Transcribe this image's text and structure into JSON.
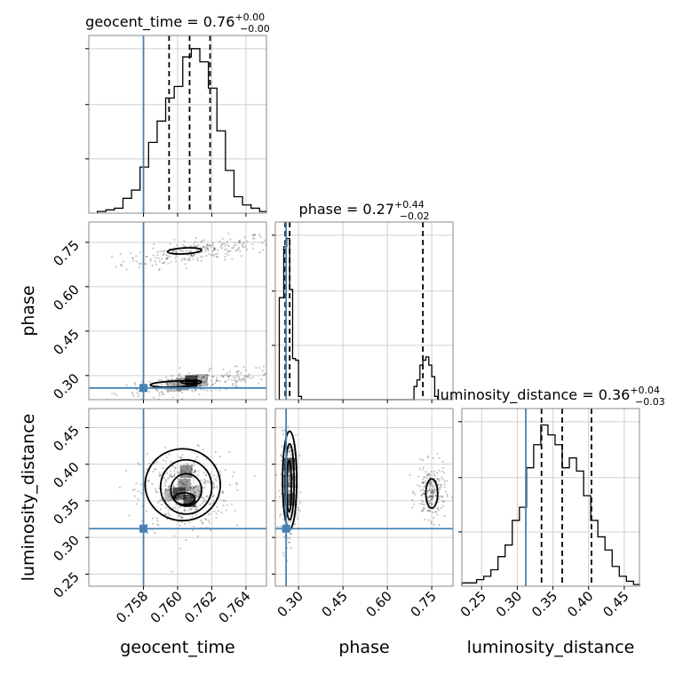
{
  "chart_data": {
    "type": "corner",
    "parameters": [
      "geocent_time",
      "phase",
      "luminosity_distance"
    ],
    "truths": {
      "geocent_time": 0.758,
      "phase": 0.258,
      "luminosity_distance": 0.312
    },
    "truth_color": "#4682b4",
    "titles": [
      {
        "param": "geocent_time",
        "median": "0.76",
        "plus": "+0.00",
        "minus": "−0.00"
      },
      {
        "param": "phase",
        "median": "0.27",
        "plus": "+0.44",
        "minus": "−0.02"
      },
      {
        "param": "luminosity_distance",
        "median": "0.36",
        "plus": "+0.04",
        "minus": "−0.03"
      }
    ],
    "axes": {
      "geocent_time": {
        "range": [
          0.7548,
          0.7652
        ],
        "ticks": [
          "0.758",
          "0.760",
          "0.762",
          "0.764"
        ],
        "tick_values": [
          0.758,
          0.76,
          0.762,
          0.764
        ]
      },
      "phase": {
        "range_x": [
          0.2216,
          0.8216
        ],
        "range_y": [
          0.2185,
          0.8185
        ],
        "ticks": [
          "0.30",
          "0.45",
          "0.60",
          "0.75"
        ],
        "tick_values": [
          0.3,
          0.45,
          0.6,
          0.75
        ]
      },
      "luminosity_distance": {
        "range_x": [
          0.2223,
          0.4713
        ],
        "range_y": [
          0.2335,
          0.476
        ],
        "ticks": [
          "0.25",
          "0.30",
          "0.35",
          "0.40",
          "0.45"
        ],
        "tick_values": [
          0.25,
          0.3,
          0.35,
          0.4,
          0.45
        ]
      }
    },
    "diagonal": [
      {
        "param": "geocent_time",
        "quantiles": [
          0.7595,
          0.7607,
          0.7619
        ],
        "bin_edges": [
          0.7553,
          0.7558,
          0.7563,
          0.7568,
          0.7573,
          0.7578,
          0.7583,
          0.7588,
          0.7593,
          0.7598,
          0.7603,
          0.7608,
          0.7613,
          0.7618,
          0.7623,
          0.7628,
          0.7633,
          0.7638,
          0.7643,
          0.7648,
          0.7652
        ],
        "counts": [
          0.01,
          0.02,
          0.03,
          0.09,
          0.14,
          0.28,
          0.43,
          0.56,
          0.7,
          0.77,
          0.95,
          1.0,
          0.92,
          0.76,
          0.5,
          0.26,
          0.1,
          0.05,
          0.03,
          0.01
        ]
      },
      {
        "param": "phase",
        "quantiles": [
          0.255,
          0.27,
          0.72
        ],
        "bin_edges": [
          0.235,
          0.25,
          0.26,
          0.27,
          0.28,
          0.29,
          0.3,
          0.31,
          0.32,
          0.69,
          0.7,
          0.71,
          0.72,
          0.73,
          0.74,
          0.75,
          0.76,
          0.77
        ],
        "counts": [
          0.62,
          0.93,
          0.98,
          0.67,
          0.25,
          0.24,
          0.02,
          0.0,
          0.0,
          0.08,
          0.12,
          0.21,
          0.24,
          0.26,
          0.21,
          0.14,
          0.02
        ]
      },
      {
        "param": "luminosity_distance",
        "quantiles": [
          0.334,
          0.363,
          0.404
        ],
        "bin_edges": [
          0.2223,
          0.233,
          0.243,
          0.253,
          0.263,
          0.273,
          0.283,
          0.293,
          0.303,
          0.313,
          0.323,
          0.333,
          0.343,
          0.353,
          0.363,
          0.373,
          0.383,
          0.393,
          0.403,
          0.413,
          0.423,
          0.433,
          0.443,
          0.453,
          0.463,
          0.4713
        ],
        "counts": [
          0.02,
          0.02,
          0.04,
          0.06,
          0.1,
          0.18,
          0.25,
          0.4,
          0.48,
          0.72,
          0.86,
          0.98,
          0.92,
          0.86,
          0.72,
          0.78,
          0.7,
          0.55,
          0.4,
          0.3,
          0.22,
          0.12,
          0.06,
          0.03,
          0.01
        ]
      }
    ],
    "pairs": [
      {
        "x": "geocent_time",
        "y": "phase",
        "clusters": [
          {
            "cx": 0.7612,
            "cy": 0.72,
            "sx": 0.0022,
            "sy": 0.02,
            "n": 240,
            "slope": 0.017
          },
          {
            "cx": 0.7612,
            "cy": 0.275,
            "sx": 0.0024,
            "sy": 0.018,
            "n": 240,
            "slope": 0.017
          }
        ],
        "contours": [
          {
            "cx": 0.7604,
            "cy": 0.721,
            "rx": 0.001,
            "ry": 0.01,
            "tilt": -0.15
          },
          {
            "cx": 0.7598,
            "cy": 0.271,
            "rx": 0.0014,
            "ry": 0.01,
            "tilt": -0.1
          },
          {
            "cx": 0.7608,
            "cy": 0.278,
            "rx": 0.0006,
            "ry": 0.006,
            "tilt": 0.0
          }
        ],
        "density_cells": [
          [
            0.7608,
            0.28,
            0.9
          ],
          [
            0.7603,
            0.271,
            0.5
          ],
          [
            0.7614,
            0.284,
            0.35
          ],
          [
            0.7597,
            0.266,
            0.3
          ]
        ]
      },
      {
        "x": "geocent_time",
        "y": "luminosity_distance",
        "clusters": [
          {
            "cx": 0.7604,
            "cy": 0.362,
            "sx": 0.0013,
            "sy": 0.027,
            "n": 420,
            "slope": 0
          }
        ],
        "contours": [
          {
            "cx": 0.7603,
            "cy": 0.372,
            "rx": 0.0022,
            "ry": 0.049,
            "tilt": 0.0
          },
          {
            "cx": 0.7605,
            "cy": 0.369,
            "rx": 0.0015,
            "ry": 0.037,
            "tilt": 0.0
          },
          {
            "cx": 0.7605,
            "cy": 0.365,
            "rx": 0.0009,
            "ry": 0.022,
            "tilt": 0.2
          },
          {
            "cx": 0.7604,
            "cy": 0.353,
            "rx": 0.0006,
            "ry": 0.008,
            "tilt": 0.0
          }
        ],
        "density_cells": [
          [
            0.7601,
            0.36,
            0.75
          ],
          [
            0.7607,
            0.35,
            0.8
          ],
          [
            0.7605,
            0.39,
            0.55
          ],
          [
            0.7604,
            0.372,
            0.45
          ],
          [
            0.7596,
            0.358,
            0.35
          ],
          [
            0.7611,
            0.362,
            0.3
          ]
        ]
      },
      {
        "x": "phase",
        "y": "luminosity_distance",
        "clusters": [
          {
            "cx": 0.268,
            "cy": 0.372,
            "sx": 0.014,
            "sy": 0.033,
            "n": 320,
            "slope": 0
          },
          {
            "cx": 0.748,
            "cy": 0.362,
            "sx": 0.024,
            "sy": 0.018,
            "n": 220,
            "slope": 0
          }
        ],
        "contours": [
          {
            "cx": 0.27,
            "cy": 0.378,
            "rx": 0.024,
            "ry": 0.067,
            "tilt": 0.0
          },
          {
            "cx": 0.27,
            "cy": 0.376,
            "rx": 0.015,
            "ry": 0.052,
            "tilt": 0.0
          },
          {
            "cx": 0.268,
            "cy": 0.37,
            "rx": 0.008,
            "ry": 0.035,
            "tilt": 0.0
          },
          {
            "cx": 0.75,
            "cy": 0.36,
            "rx": 0.02,
            "ry": 0.02,
            "tilt": 0.0
          }
        ],
        "density_cells": [
          [
            0.268,
            0.4,
            0.7
          ],
          [
            0.268,
            0.352,
            0.65
          ],
          [
            0.268,
            0.376,
            0.4
          ]
        ]
      }
    ]
  }
}
